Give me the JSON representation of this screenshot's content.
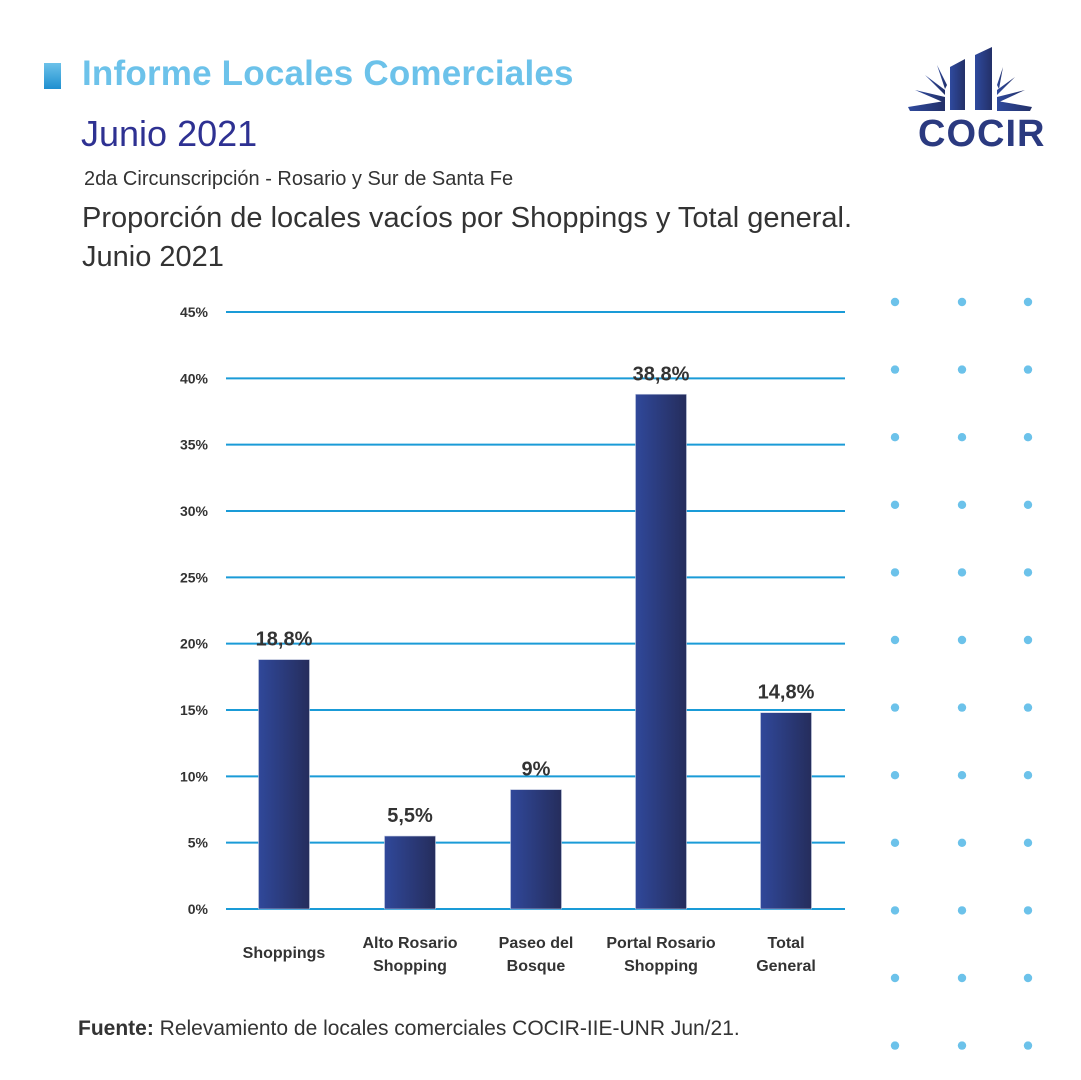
{
  "header": {
    "report_title": "Informe Locales Comerciales",
    "period": "Junio 2021",
    "jurisdiction": "2da Circunscripción - Rosario y Sur de Santa Fe"
  },
  "logo": {
    "text": "COCIR",
    "icon": "cocir-building-icon"
  },
  "chart_data": {
    "type": "bar",
    "title": "Proporción de locales vacíos por Shoppings y Total general. Junio 2021",
    "title_lines": [
      "Proporción de locales vacíos por Shoppings y Total general.",
      "Junio 2021"
    ],
    "categories": [
      "Shoppings",
      "Alto Rosario Shopping",
      "Paseo del Bosque",
      "Portal Rosario Shopping",
      "Total General"
    ],
    "category_lines": [
      [
        "Shoppings"
      ],
      [
        "Alto Rosario",
        "Shopping"
      ],
      [
        "Paseo del",
        "Bosque"
      ],
      [
        "Portal Rosario",
        "Shopping"
      ],
      [
        "Total",
        "General"
      ]
    ],
    "values": [
      18.8,
      5.5,
      9,
      38.8,
      14.8
    ],
    "data_labels": [
      "18,8%",
      "5,5%",
      "9%",
      "38,8%",
      "14,8%"
    ],
    "xlabel": "",
    "ylabel": "",
    "ylim": [
      0,
      45
    ],
    "yticks": [
      0,
      5,
      10,
      15,
      20,
      25,
      30,
      35,
      40,
      45
    ],
    "ytick_labels": [
      "0%",
      "5%",
      "10%",
      "15%",
      "20%",
      "25%",
      "30%",
      "35%",
      "40%",
      "45%"
    ],
    "grid": true,
    "legend": "none",
    "colors": {
      "bar_light": "#30489a",
      "bar_dark": "#252d5c",
      "grid": "#1a9bd7",
      "text": "#333333"
    }
  },
  "footer": {
    "source_label": "Fuente:",
    "source_text": " Relevamiento de locales comerciales COCIR-IIE-UNR Jun/21."
  },
  "decoration": {
    "dot_color": "#6cc2ea",
    "dot_columns": 3,
    "dot_rows": 12
  }
}
